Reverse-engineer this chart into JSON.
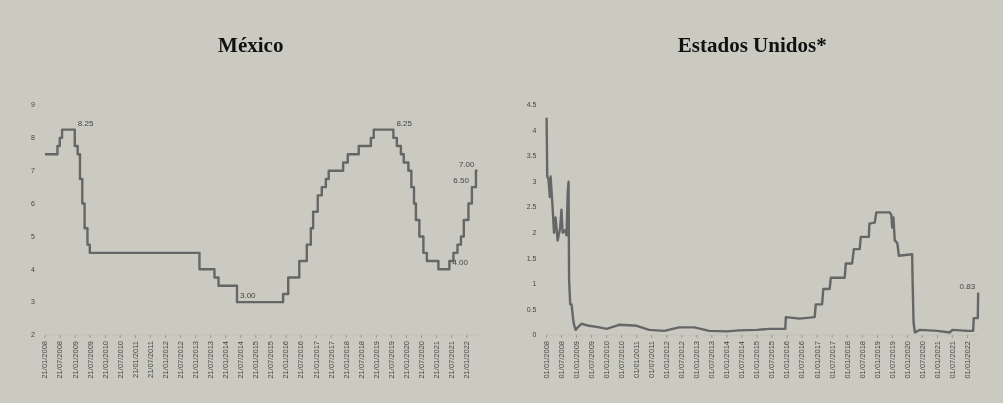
{
  "chart_data": [
    {
      "type": "step",
      "title": "México",
      "xlim": [
        "2008-01-21",
        "2022-05-31"
      ],
      "ylim": [
        2,
        9
      ],
      "yticks": [
        2,
        3,
        4,
        5,
        6,
        7,
        8,
        9
      ],
      "xticks": [
        {
          "value": "2008-01-21",
          "label": "21/01/2008"
        },
        {
          "value": "2008-07-21",
          "label": "21/07/2008"
        },
        {
          "value": "2009-01-21",
          "label": "21/01/2009"
        },
        {
          "value": "2009-07-21",
          "label": "21/07/2009"
        },
        {
          "value": "2010-01-21",
          "label": "21/01/2010"
        },
        {
          "value": "2010-07-21",
          "label": "21/07/2010"
        },
        {
          "value": "2011-01-21",
          "label": "21/01/2011"
        },
        {
          "value": "2011-07-21",
          "label": "21/07/2011"
        },
        {
          "value": "2012-01-21",
          "label": "21/01/2012"
        },
        {
          "value": "2012-07-21",
          "label": "21/07/2012"
        },
        {
          "value": "2013-01-21",
          "label": "21/01/2013"
        },
        {
          "value": "2013-07-21",
          "label": "21/07/2013"
        },
        {
          "value": "2014-01-21",
          "label": "21/01/2014"
        },
        {
          "value": "2014-07-21",
          "label": "21/07/2014"
        },
        {
          "value": "2015-01-21",
          "label": "21/01/2015"
        },
        {
          "value": "2015-07-21",
          "label": "21/07/2015"
        },
        {
          "value": "2016-01-21",
          "label": "21/01/2016"
        },
        {
          "value": "2016-07-21",
          "label": "21/07/2016"
        },
        {
          "value": "2017-01-21",
          "label": "21/01/2017"
        },
        {
          "value": "2017-07-21",
          "label": "21/07/2017"
        },
        {
          "value": "2018-01-21",
          "label": "21/01/2018"
        },
        {
          "value": "2018-07-21",
          "label": "21/07/2018"
        },
        {
          "value": "2019-01-21",
          "label": "21/01/2019"
        },
        {
          "value": "2019-07-21",
          "label": "21/07/2019"
        },
        {
          "value": "2020-01-21",
          "label": "21/01/2020"
        },
        {
          "value": "2020-07-21",
          "label": "21/07/2020"
        },
        {
          "value": "2021-01-21",
          "label": "21/01/2021"
        },
        {
          "value": "2021-07-21",
          "label": "21/07/2021"
        },
        {
          "value": "2022-01-21",
          "label": "21/01/2022"
        }
      ],
      "series": [
        {
          "color": "#666666",
          "x": [
            "2008-01-21",
            "2008-06-20",
            "2008-07-18",
            "2008-08-15",
            "2009-01-16",
            "2009-02-20",
            "2009-03-20",
            "2009-04-17",
            "2009-05-15",
            "2009-06-19",
            "2009-07-17",
            "2013-03-08",
            "2013-09-06",
            "2013-10-25",
            "2014-06-06",
            "2015-12-17",
            "2016-02-17",
            "2016-06-30",
            "2016-09-29",
            "2016-11-17",
            "2016-12-15",
            "2017-02-09",
            "2017-03-30",
            "2017-05-18",
            "2017-06-22",
            "2017-12-14",
            "2018-02-08",
            "2018-06-21",
            "2018-11-15",
            "2018-12-20",
            "2019-08-15",
            "2019-09-26",
            "2019-11-14",
            "2019-12-19",
            "2020-02-13",
            "2020-03-20",
            "2020-04-21",
            "2020-05-14",
            "2020-06-25",
            "2020-08-13",
            "2020-09-24",
            "2021-02-11",
            "2021-06-24",
            "2021-08-12",
            "2021-09-30",
            "2021-11-11",
            "2021-12-16",
            "2022-02-10",
            "2022-03-24",
            "2022-05-12",
            "2022-05-31"
          ],
          "values": [
            7.5,
            7.75,
            8,
            8.25,
            7.75,
            7.5,
            6.75,
            6,
            5.25,
            4.75,
            4.5,
            4,
            3.75,
            3.5,
            3,
            3.25,
            3.75,
            4.25,
            4.75,
            5.25,
            5.75,
            6.25,
            6.5,
            6.75,
            7,
            7.25,
            7.5,
            7.75,
            8,
            8.25,
            8,
            7.75,
            7.5,
            7.25,
            7,
            6.5,
            6,
            5.5,
            5,
            4.5,
            4.25,
            4,
            4.25,
            4.5,
            4.75,
            5,
            5.5,
            6,
            6.5,
            7,
            7
          ]
        }
      ],
      "annotations": [
        {
          "text": "8.25",
          "x": "2009-01-16",
          "y": 8.25
        },
        {
          "text": "8.25",
          "x": "2019-08-15",
          "y": 8.25
        },
        {
          "text": "3.00",
          "x": "2014-06-06",
          "y": 3
        },
        {
          "text": "4.00",
          "x": "2021-06-24",
          "y": 4
        },
        {
          "text": "6.50",
          "x": "2022-03-24",
          "y": 6.5
        },
        {
          "text": "7.00",
          "x": "2022-05-31",
          "y": 7
        }
      ]
    },
    {
      "type": "line",
      "title": "Estados Unidos*",
      "xlim": [
        "2008-01-01",
        "2022-05-20"
      ],
      "ylim": [
        0,
        4.5
      ],
      "yticks": [
        0,
        0.5,
        1,
        1.5,
        2,
        2.5,
        3,
        3.5,
        4,
        4.5
      ],
      "xticks": [
        {
          "value": "2008-01-01",
          "label": "01/01/2008"
        },
        {
          "value": "2008-07-01",
          "label": "01/07/2008"
        },
        {
          "value": "2009-01-01",
          "label": "01/01/2009"
        },
        {
          "value": "2009-07-01",
          "label": "01/07/2009"
        },
        {
          "value": "2010-01-01",
          "label": "01/01/2010"
        },
        {
          "value": "2010-07-01",
          "label": "01/07/2010"
        },
        {
          "value": "2011-01-01",
          "label": "01/01/2011"
        },
        {
          "value": "2011-07-01",
          "label": "01/07/2011"
        },
        {
          "value": "2012-01-01",
          "label": "01/01/2012"
        },
        {
          "value": "2012-07-01",
          "label": "01/07/2012"
        },
        {
          "value": "2013-01-01",
          "label": "01/01/2013"
        },
        {
          "value": "2013-07-01",
          "label": "01/07/2013"
        },
        {
          "value": "2014-01-01",
          "label": "01/01/2014"
        },
        {
          "value": "2014-07-01",
          "label": "01/07/2014"
        },
        {
          "value": "2015-01-01",
          "label": "01/01/2015"
        },
        {
          "value": "2015-07-01",
          "label": "01/07/2015"
        },
        {
          "value": "2016-01-01",
          "label": "01/01/2016"
        },
        {
          "value": "2016-07-01",
          "label": "01/07/2016"
        },
        {
          "value": "2017-01-01",
          "label": "01/01/2017"
        },
        {
          "value": "2017-07-01",
          "label": "01/07/2017"
        },
        {
          "value": "2018-01-01",
          "label": "01/01/2018"
        },
        {
          "value": "2018-07-01",
          "label": "01/07/2018"
        },
        {
          "value": "2019-01-01",
          "label": "01/01/2019"
        },
        {
          "value": "2019-07-01",
          "label": "01/07/2019"
        },
        {
          "value": "2020-01-01",
          "label": "01/01/2020"
        },
        {
          "value": "2020-07-01",
          "label": "01/07/2020"
        },
        {
          "value": "2021-01-01",
          "label": "01/01/2021"
        },
        {
          "value": "2021-07-01",
          "label": "01/07/2021"
        },
        {
          "value": "2022-01-01",
          "label": "01/01/2022"
        }
      ],
      "series": [
        {
          "color": "#666666",
          "x": [
            "2008-01-02",
            "2008-01-10",
            "2008-01-25",
            "2008-02-10",
            "2008-02-20",
            "2008-03-15",
            "2008-04-01",
            "2008-04-20",
            "2008-05-15",
            "2008-06-15",
            "2008-07-01",
            "2008-07-15",
            "2008-08-15",
            "2008-09-01",
            "2008-09-15",
            "2008-09-25",
            "2008-10-01",
            "2008-10-15",
            "2008-11-01",
            "2008-11-20",
            "2008-12-01",
            "2008-12-20",
            "2009-01-15",
            "2009-03-01",
            "2009-06-01",
            "2009-09-01",
            "2010-01-01",
            "2010-06-01",
            "2010-10-01",
            "2011-01-01",
            "2011-06-01",
            "2011-12-01",
            "2012-06-01",
            "2012-12-01",
            "2013-06-01",
            "2014-01-01",
            "2014-06-01",
            "2015-01-01",
            "2015-06-01",
            "2015-12-10",
            "2015-12-17",
            "2016-06-01",
            "2016-12-01",
            "2016-12-15",
            "2017-03-01",
            "2017-03-16",
            "2017-06-01",
            "2017-06-15",
            "2017-12-01",
            "2017-12-14",
            "2018-03-01",
            "2018-03-22",
            "2018-06-01",
            "2018-06-14",
            "2018-09-20",
            "2018-09-27",
            "2018-12-01",
            "2018-12-20",
            "2019-06-01",
            "2019-06-20",
            "2019-07-01",
            "2019-07-15",
            "2019-08-01",
            "2019-09-01",
            "2019-09-20",
            "2020-02-28",
            "2020-03-04",
            "2020-03-16",
            "2020-04-01",
            "2020-06-01",
            "2021-01-01",
            "2021-06-01",
            "2021-07-01",
            "2022-01-01",
            "2022-03-10",
            "2022-03-17",
            "2022-05-05",
            "2022-05-10"
          ],
          "values": [
            4.25,
            3.1,
            3.05,
            2.7,
            3.1,
            2.5,
            2.0,
            2.3,
            1.85,
            2.1,
            2.45,
            2.0,
            2.05,
            1.95,
            2.8,
            3.0,
            1.1,
            0.6,
            0.6,
            0.3,
            0.2,
            0.1,
            0.15,
            0.22,
            0.18,
            0.16,
            0.12,
            0.2,
            0.19,
            0.18,
            0.1,
            0.08,
            0.15,
            0.15,
            0.08,
            0.07,
            0.09,
            0.1,
            0.12,
            0.12,
            0.35,
            0.32,
            0.35,
            0.6,
            0.6,
            0.9,
            0.9,
            1.12,
            1.12,
            1.4,
            1.4,
            1.68,
            1.68,
            1.92,
            1.92,
            2.18,
            2.2,
            2.4,
            2.4,
            2.35,
            2.1,
            2.3,
            1.85,
            1.8,
            1.55,
            1.58,
            1.1,
            0.25,
            0.05,
            0.1,
            0.08,
            0.05,
            0.1,
            0.08,
            0.08,
            0.33,
            0.33,
            0.83
          ]
        }
      ],
      "annotations": [
        {
          "text": "0.83",
          "x": "2022-05-10",
          "y": 0.83
        }
      ]
    }
  ]
}
